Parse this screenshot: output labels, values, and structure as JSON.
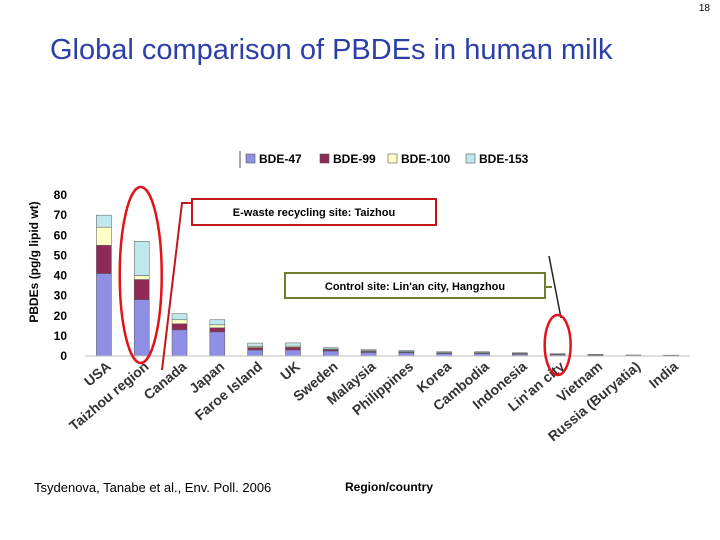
{
  "slide": {
    "page_number": "18",
    "title": "Global comparison of PBDEs in human milk",
    "citation": "Tsydenova, Tanabe  et al., Env. Poll. 2006"
  },
  "chart_data": {
    "type": "bar",
    "stacked": true,
    "ylabel": "PBDEs (pg/g lipid wt)",
    "xlabel": "Region/country",
    "ylim": [
      0,
      80
    ],
    "yticks": [
      0,
      10,
      20,
      30,
      40,
      50,
      60,
      70,
      80
    ],
    "grid": false,
    "legend_position": "top",
    "categories": [
      "USA",
      "Taizhou region",
      "Canada",
      "Japan",
      "Faroe Island",
      "UK",
      "Sweden",
      "Malaysia",
      "Philippines",
      "Korea",
      "Cambodia",
      "Indonesia",
      "Lin'an city",
      "Vietnam",
      "Russia (Buryatia)",
      "India"
    ],
    "category_label_lines": [
      [
        "USA"
      ],
      [
        "Taizhou region"
      ],
      [
        "Canada"
      ],
      [
        "Japan"
      ],
      [
        "Faroe Island"
      ],
      [
        "UK"
      ],
      [
        "Sweden"
      ],
      [
        "Malaysia"
      ],
      [
        "Philippines"
      ],
      [
        "Korea"
      ],
      [
        "Cambodia"
      ],
      [
        "Indonesia"
      ],
      [
        "Lin'an city"
      ],
      [
        "Vietnam"
      ],
      [
        "Russia (Buryatia)"
      ],
      [
        "India"
      ]
    ],
    "series": [
      {
        "name": "BDE-47",
        "color": "#8f8fe6",
        "values": [
          41,
          28,
          13,
          12,
          3,
          3,
          2.5,
          1.8,
          1.6,
          1.2,
          1.2,
          1.0,
          0.7,
          0.5,
          0.3,
          0.2
        ]
      },
      {
        "name": "BDE-99",
        "color": "#8e2a55",
        "values": [
          14,
          10,
          3,
          2,
          1.2,
          1.3,
          0.7,
          0.5,
          0.4,
          0.3,
          0.3,
          0.2,
          0.15,
          0.1,
          0.05,
          0.05
        ]
      },
      {
        "name": "BDE-100",
        "color": "#ffffc8",
        "values": [
          9,
          2,
          2,
          1.5,
          0.6,
          0.6,
          0.3,
          0.3,
          0.2,
          0.2,
          0.2,
          0.1,
          0.1,
          0.05,
          0.05,
          0.05
        ]
      },
      {
        "name": "BDE-153",
        "color": "#bfe8ec",
        "values": [
          6,
          17,
          3,
          2.5,
          1.6,
          1.6,
          0.6,
          0.6,
          0.6,
          0.4,
          0.4,
          0.3,
          0.15,
          0.15,
          0.1,
          0.1
        ]
      }
    ],
    "annotations": [
      {
        "text": "E-waste recycling site: Taizhou",
        "target": "Taizhou region",
        "border_color": "#c0171b"
      },
      {
        "text": "Control site: Lin'an city, Hangzhou",
        "target": "Lin'an city",
        "border_color": "#6e7e2d"
      }
    ]
  }
}
